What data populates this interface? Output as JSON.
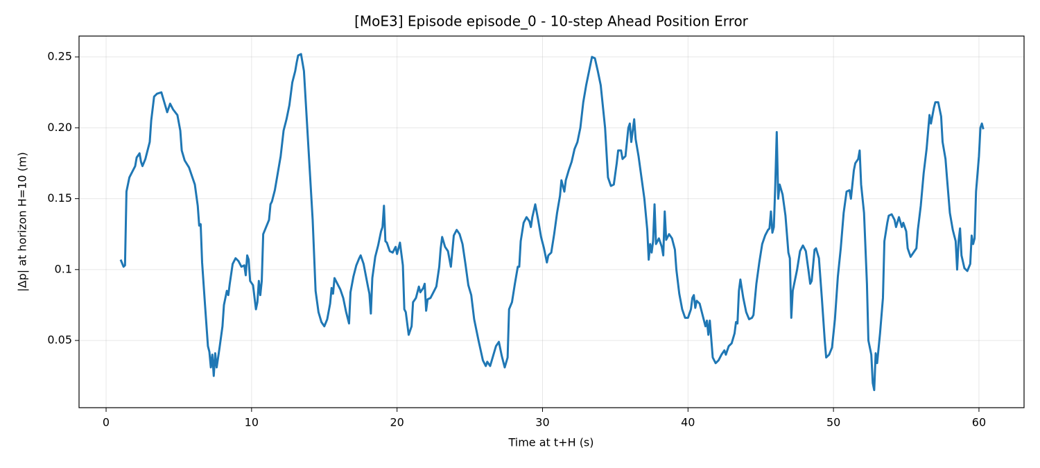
{
  "chart_data": {
    "type": "line",
    "title": "[MoE3] Episode episode_0 - 10-step Ahead Position Error",
    "x_label": "Time at t+H (s)",
    "y_label": "|Δp| at horizon H=10 (m)",
    "color": "#1f77b4",
    "grid": true,
    "xlim": [
      -1.86,
      63.1
    ],
    "ylim": [
      0.0026,
      0.2647
    ],
    "xticks": [
      0,
      10,
      20,
      30,
      40,
      50,
      60
    ],
    "yticks": [
      0.05,
      0.1,
      {
        "value": 0.15,
        "label": "0.15"
      },
      {
        "value": 0.2,
        "label": "0.20"
      },
      0.25
    ],
    "x": [
      1.0,
      1.2,
      1.3,
      1.4,
      1.6,
      2.0,
      2.1,
      2.3,
      2.4,
      2.5,
      2.7,
      3.0,
      3.1,
      3.3,
      3.5,
      3.8,
      4.0,
      4.2,
      4.4,
      4.6,
      4.9,
      5.1,
      5.2,
      5.4,
      5.7,
      5.9,
      6.1,
      6.3,
      6.4,
      6.5,
      6.6,
      6.8,
      7.0,
      7.1,
      7.2,
      7.3,
      7.4,
      7.5,
      7.6,
      7.8,
      8.0,
      8.1,
      8.3,
      8.4,
      8.5,
      8.7,
      8.9,
      9.1,
      9.3,
      9.5,
      9.6,
      9.7,
      9.8,
      9.9,
      10.1,
      10.3,
      10.4,
      10.5,
      10.6,
      10.7,
      10.8,
      11.0,
      11.2,
      11.3,
      11.4,
      11.6,
      11.8,
      12.0,
      12.2,
      12.4,
      12.6,
      12.8,
      13.0,
      13.1,
      13.2,
      13.4,
      13.6,
      13.8,
      14.0,
      14.2,
      14.4,
      14.6,
      14.8,
      15.0,
      15.2,
      15.4,
      15.5,
      15.6,
      15.7,
      15.9,
      16.1,
      16.3,
      16.5,
      16.7,
      16.8,
      17.0,
      17.2,
      17.4,
      17.5,
      17.7,
      18.0,
      18.1,
      18.2,
      18.3,
      18.5,
      18.7,
      18.9,
      19.0,
      19.1,
      19.2,
      19.3,
      19.5,
      19.7,
      19.9,
      20.0,
      20.2,
      20.4,
      20.5,
      20.6,
      20.8,
      21.0,
      21.1,
      21.3,
      21.5,
      21.6,
      21.8,
      21.9,
      22.0,
      22.1,
      22.3,
      22.5,
      22.7,
      22.9,
      23.0,
      23.1,
      23.3,
      23.5,
      23.7,
      23.9,
      24.1,
      24.3,
      24.5,
      24.7,
      24.9,
      25.1,
      25.3,
      25.6,
      25.9,
      26.1,
      26.2,
      26.4,
      26.6,
      26.8,
      27.0,
      27.2,
      27.4,
      27.6,
      27.7,
      27.9,
      28.1,
      28.3,
      28.4,
      28.5,
      28.7,
      28.9,
      29.1,
      29.2,
      29.3,
      29.5,
      29.7,
      29.9,
      30.1,
      30.3,
      30.4,
      30.6,
      30.8,
      31.0,
      31.2,
      31.3,
      31.5,
      31.6,
      31.8,
      32.0,
      32.2,
      32.4,
      32.6,
      32.8,
      33.0,
      33.2,
      33.4,
      33.6,
      33.8,
      34.0,
      34.2,
      34.3,
      34.5,
      34.7,
      34.9,
      35.1,
      35.2,
      35.4,
      35.5,
      35.7,
      35.9,
      36.0,
      36.1,
      36.3,
      36.4,
      36.6,
      36.8,
      37.0,
      37.2,
      37.3,
      37.4,
      37.5,
      37.6,
      37.7,
      37.8,
      38.0,
      38.2,
      38.3,
      38.4,
      38.5,
      38.7,
      38.9,
      39.1,
      39.2,
      39.4,
      39.6,
      39.8,
      40.0,
      40.2,
      40.3,
      40.4,
      40.5,
      40.6,
      40.8,
      41.0,
      41.2,
      41.3,
      41.4,
      41.5,
      41.7,
      41.9,
      42.1,
      42.3,
      42.5,
      42.6,
      42.8,
      43.0,
      43.2,
      43.3,
      43.4,
      43.5,
      43.6,
      43.8,
      44.0,
      44.2,
      44.4,
      44.5,
      44.7,
      44.9,
      45.1,
      45.3,
      45.5,
      45.6,
      45.7,
      45.8,
      45.9,
      46.0,
      46.1,
      46.2,
      46.3,
      46.5,
      46.7,
      46.9,
      47.0,
      47.1,
      47.2,
      47.4,
      47.5,
      47.7,
      47.9,
      48.1,
      48.3,
      48.4,
      48.5,
      48.7,
      48.8,
      49.0,
      49.2,
      49.4,
      49.5,
      49.7,
      49.9,
      50.1,
      50.3,
      50.5,
      50.7,
      50.9,
      51.1,
      51.2,
      51.4,
      51.5,
      51.7,
      51.8,
      51.9,
      52.1,
      52.3,
      52.4,
      52.6,
      52.7,
      52.8,
      52.9,
      53.0,
      53.2,
      53.4,
      53.5,
      53.7,
      53.8,
      54.0,
      54.2,
      54.3,
      54.5,
      54.7,
      54.8,
      55.0,
      55.1,
      55.3,
      55.5,
      55.7,
      55.8,
      56.0,
      56.2,
      56.4,
      56.6,
      56.7,
      56.9,
      57.0,
      57.2,
      57.4,
      57.5,
      57.7,
      57.8,
      58.0,
      58.2,
      58.3,
      58.4,
      58.5,
      58.6,
      58.7,
      58.8,
      59.0,
      59.2,
      59.4,
      59.5,
      59.6,
      59.7,
      59.8,
      60.0,
      60.1,
      60.2,
      60.3
    ],
    "values": [
      0.107,
      0.102,
      0.103,
      0.155,
      0.165,
      0.173,
      0.179,
      0.182,
      0.176,
      0.173,
      0.178,
      0.19,
      0.205,
      0.222,
      0.224,
      0.225,
      0.218,
      0.211,
      0.217,
      0.213,
      0.209,
      0.198,
      0.184,
      0.177,
      0.172,
      0.166,
      0.16,
      0.145,
      0.131,
      0.132,
      0.105,
      0.075,
      0.046,
      0.042,
      0.031,
      0.04,
      0.025,
      0.041,
      0.031,
      0.045,
      0.06,
      0.075,
      0.085,
      0.082,
      0.09,
      0.104,
      0.108,
      0.106,
      0.102,
      0.103,
      0.096,
      0.11,
      0.107,
      0.092,
      0.089,
      0.072,
      0.077,
      0.092,
      0.082,
      0.092,
      0.125,
      0.13,
      0.135,
      0.146,
      0.148,
      0.156,
      0.168,
      0.18,
      0.198,
      0.206,
      0.216,
      0.232,
      0.24,
      0.246,
      0.251,
      0.252,
      0.24,
      0.205,
      0.17,
      0.135,
      0.085,
      0.07,
      0.063,
      0.06,
      0.065,
      0.076,
      0.087,
      0.083,
      0.094,
      0.09,
      0.086,
      0.08,
      0.07,
      0.062,
      0.084,
      0.095,
      0.103,
      0.108,
      0.11,
      0.104,
      0.088,
      0.083,
      0.069,
      0.094,
      0.109,
      0.117,
      0.127,
      0.13,
      0.145,
      0.12,
      0.119,
      0.113,
      0.112,
      0.116,
      0.111,
      0.119,
      0.103,
      0.072,
      0.07,
      0.054,
      0.06,
      0.077,
      0.08,
      0.088,
      0.084,
      0.087,
      0.09,
      0.071,
      0.079,
      0.08,
      0.084,
      0.088,
      0.102,
      0.115,
      0.123,
      0.116,
      0.113,
      0.102,
      0.124,
      0.128,
      0.125,
      0.118,
      0.104,
      0.089,
      0.082,
      0.065,
      0.05,
      0.036,
      0.032,
      0.035,
      0.032,
      0.039,
      0.046,
      0.049,
      0.039,
      0.031,
      0.038,
      0.072,
      0.077,
      0.09,
      0.102,
      0.102,
      0.12,
      0.133,
      0.137,
      0.134,
      0.13,
      0.137,
      0.146,
      0.135,
      0.123,
      0.115,
      0.105,
      0.11,
      0.112,
      0.125,
      0.14,
      0.152,
      0.163,
      0.155,
      0.163,
      0.17,
      0.176,
      0.185,
      0.19,
      0.2,
      0.218,
      0.23,
      0.24,
      0.25,
      0.249,
      0.24,
      0.23,
      0.21,
      0.2,
      0.165,
      0.159,
      0.16,
      0.175,
      0.184,
      0.184,
      0.178,
      0.18,
      0.2,
      0.203,
      0.19,
      0.206,
      0.192,
      0.18,
      0.165,
      0.15,
      0.128,
      0.107,
      0.118,
      0.112,
      0.12,
      0.146,
      0.118,
      0.122,
      0.116,
      0.11,
      0.141,
      0.121,
      0.125,
      0.122,
      0.114,
      0.1,
      0.083,
      0.072,
      0.066,
      0.066,
      0.072,
      0.08,
      0.082,
      0.073,
      0.078,
      0.076,
      0.068,
      0.06,
      0.064,
      0.054,
      0.064,
      0.038,
      0.034,
      0.036,
      0.04,
      0.043,
      0.04,
      0.046,
      0.048,
      0.055,
      0.063,
      0.062,
      0.085,
      0.093,
      0.08,
      0.07,
      0.065,
      0.066,
      0.068,
      0.09,
      0.105,
      0.118,
      0.124,
      0.128,
      0.129,
      0.141,
      0.126,
      0.13,
      0.16,
      0.197,
      0.15,
      0.16,
      0.153,
      0.138,
      0.112,
      0.108,
      0.066,
      0.085,
      0.095,
      0.1,
      0.113,
      0.117,
      0.113,
      0.098,
      0.09,
      0.092,
      0.114,
      0.115,
      0.108,
      0.08,
      0.05,
      0.038,
      0.04,
      0.045,
      0.065,
      0.095,
      0.115,
      0.14,
      0.155,
      0.156,
      0.15,
      0.17,
      0.175,
      0.178,
      0.184,
      0.16,
      0.14,
      0.09,
      0.05,
      0.04,
      0.02,
      0.015,
      0.041,
      0.034,
      0.055,
      0.08,
      0.12,
      0.133,
      0.138,
      0.139,
      0.135,
      0.13,
      0.137,
      0.13,
      0.133,
      0.127,
      0.115,
      0.109,
      0.112,
      0.115,
      0.128,
      0.145,
      0.168,
      0.185,
      0.209,
      0.203,
      0.214,
      0.218,
      0.218,
      0.208,
      0.19,
      0.178,
      0.165,
      0.14,
      0.128,
      0.124,
      0.12,
      0.1,
      0.12,
      0.129,
      0.11,
      0.101,
      0.099,
      0.104,
      0.124,
      0.118,
      0.122,
      0.155,
      0.18,
      0.2,
      0.203,
      0.199
    ]
  }
}
